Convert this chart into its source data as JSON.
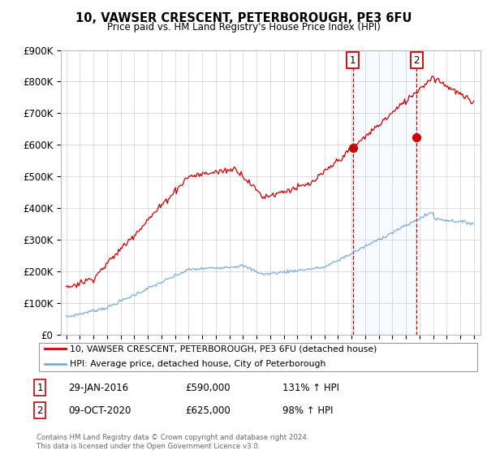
{
  "title": "10, VAWSER CRESCENT, PETERBOROUGH, PE3 6FU",
  "subtitle": "Price paid vs. HM Land Registry's House Price Index (HPI)",
  "background_color": "#ffffff",
  "grid_color": "#d0d0d0",
  "sale1_date": "29-JAN-2016",
  "sale1_price": 590000,
  "sale1_label": "1",
  "sale1_hpi": "131% ↑ HPI",
  "sale2_date": "09-OCT-2020",
  "sale2_price": 625000,
  "sale2_label": "2",
  "sale2_hpi": "98% ↑ HPI",
  "legend_line1": "10, VAWSER CRESCENT, PETERBOROUGH, PE3 6FU (detached house)",
  "legend_line2": "HPI: Average price, detached house, City of Peterborough",
  "line1_color": "#cc0000",
  "line2_color": "#7aabdb",
  "annotation_box_color": "#cc0000",
  "footer": "Contains HM Land Registry data © Crown copyright and database right 2024.\nThis data is licensed under the Open Government Licence v3.0.",
  "ylim": [
    0,
    900000
  ],
  "yticks": [
    0,
    100000,
    200000,
    300000,
    400000,
    500000,
    600000,
    700000,
    800000,
    900000
  ],
  "ytick_labels": [
    "£0",
    "£100K",
    "£200K",
    "£300K",
    "£400K",
    "£500K",
    "£600K",
    "£700K",
    "£800K",
    "£900K"
  ]
}
